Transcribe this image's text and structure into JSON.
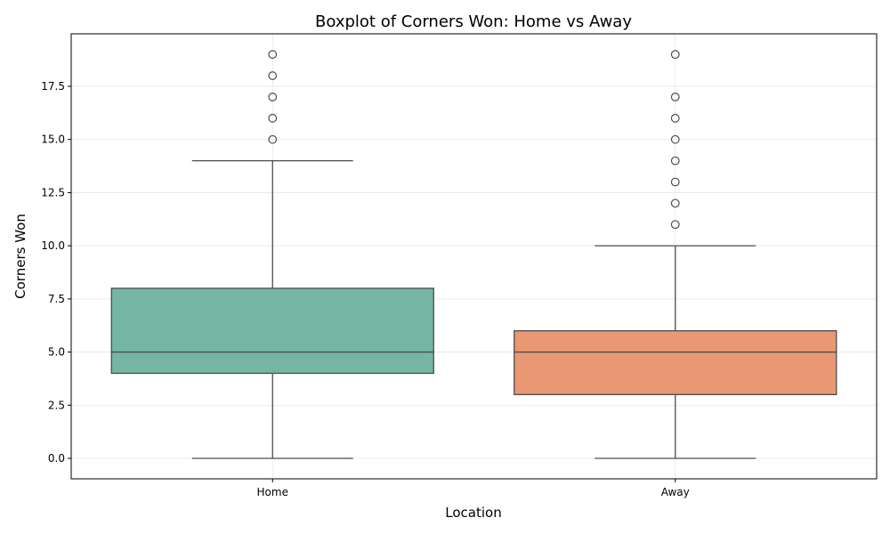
{
  "chart_data": {
    "type": "box",
    "title": "Boxplot of Corners Won: Home vs Away",
    "xlabel": "Location",
    "ylabel": "Corners Won",
    "ylim": [
      -1,
      20
    ],
    "yticks": [
      0.0,
      2.5,
      5.0,
      7.5,
      10.0,
      12.5,
      15.0,
      17.5
    ],
    "ytick_labels": [
      "0.0",
      "2.5",
      "5.0",
      "7.5",
      "10.0",
      "12.5",
      "15.0",
      "17.5"
    ],
    "grid": true,
    "categories": [
      "Home",
      "Away"
    ],
    "boxes": [
      {
        "category": "Home",
        "whisker_low": 0,
        "q1": 4,
        "median": 5,
        "q3": 8,
        "whisker_high": 14,
        "outliers": [
          15,
          16,
          17,
          18,
          19
        ],
        "color": "#74b6a2"
      },
      {
        "category": "Away",
        "whisker_low": 0,
        "q1": 3,
        "median": 5,
        "q3": 6,
        "whisker_high": 10,
        "outliers": [
          11,
          12,
          13,
          14,
          15,
          16,
          17,
          19
        ],
        "color": "#ea9774"
      }
    ]
  }
}
